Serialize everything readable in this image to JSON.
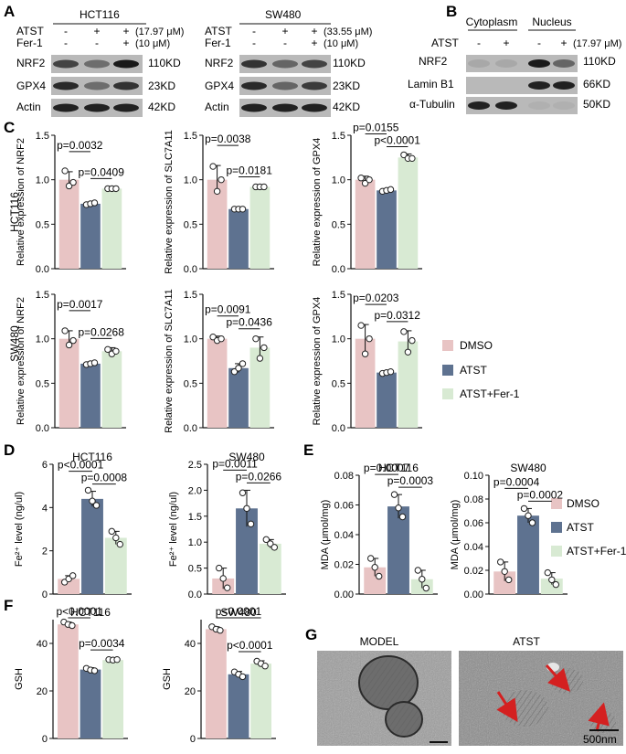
{
  "panels": [
    "A",
    "B",
    "C",
    "D",
    "E",
    "F",
    "G"
  ],
  "colors": {
    "dmso": "#e8c4c4",
    "atst": "#5e7290",
    "fer": "#d8ead3",
    "axis": "#111111",
    "arrow": "#d42020"
  },
  "legend": {
    "items": [
      "DMSO",
      "ATST",
      "ATST+Fer-1"
    ]
  },
  "blotA": [
    {
      "cell": "HCT116",
      "row1_label": "ATST",
      "row1_vals": [
        "-",
        "+",
        "+"
      ],
      "row1_conc": "(17.97 μM)",
      "row2_label": "Fer-1",
      "row2_vals": [
        "-",
        "-",
        "+"
      ],
      "row2_conc": "(10 μM)",
      "bands": [
        "NRF2",
        "GPX4",
        "Actin"
      ],
      "kd": [
        "110KD",
        "23KD",
        "42KD"
      ]
    },
    {
      "cell": "SW480",
      "row1_label": "ATST",
      "row1_vals": [
        "-",
        "+",
        "+"
      ],
      "row1_conc": "(33.55 μM)",
      "row2_label": "Fer-1",
      "row2_vals": [
        "-",
        "-",
        "+"
      ],
      "row2_conc": "(10 μM)",
      "bands": [
        "NRF2",
        "GPX4",
        "Actin"
      ],
      "kd": [
        "110KD",
        "23KD",
        "42KD"
      ]
    }
  ],
  "blotB": {
    "groups": [
      "Cytoplasm",
      "Nucleus"
    ],
    "row_label": "ATST",
    "vals": [
      "-",
      "+",
      "-",
      "+"
    ],
    "conc": "(17.97 μM)",
    "bands": [
      "NRF2",
      "Lamin B1",
      "α-Tubulin"
    ],
    "kd": [
      "110KD",
      "66KD",
      "50KD"
    ]
  },
  "rowLabels": [
    "HCT116",
    "SW480"
  ],
  "chart_data": [
    {
      "panel": "C",
      "type": "bar",
      "row": "HCT116",
      "ylabel": "Relative expression of NRF2",
      "ylim": [
        0,
        1.5
      ],
      "ticks": [
        "0.0",
        "0.5",
        "1.0",
        "1.5"
      ],
      "categories": [
        "DMSO",
        "ATST",
        "ATST+Fer-1"
      ],
      "values": [
        1.0,
        0.73,
        0.9
      ],
      "errors": [
        0.09,
        0.02,
        0.01
      ],
      "points": [
        [
          1.1,
          0.93,
          0.97
        ],
        [
          0.72,
          0.73,
          0.74
        ],
        [
          0.9,
          0.9,
          0.9
        ]
      ],
      "annotations": [
        {
          "from": 0,
          "to": 1,
          "text": "p=0.0032"
        },
        {
          "from": 1,
          "to": 2,
          "text": "p=0.0409"
        }
      ]
    },
    {
      "panel": "C",
      "type": "bar",
      "row": "HCT116",
      "ylabel": "Relative expression of SLC7A11",
      "ylim": [
        0,
        1.5
      ],
      "ticks": [
        "0.0",
        "0.5",
        "1.0",
        "1.5"
      ],
      "categories": [
        "DMSO",
        "ATST",
        "ATST+Fer-1"
      ],
      "values": [
        1.0,
        0.67,
        0.92
      ],
      "errors": [
        0.16,
        0.01,
        0.01
      ],
      "points": [
        [
          1.15,
          0.87,
          1.0
        ],
        [
          0.67,
          0.67,
          0.67
        ],
        [
          0.92,
          0.92,
          0.92
        ]
      ],
      "annotations": [
        {
          "from": 0,
          "to": 1,
          "text": "p=0.0038"
        },
        {
          "from": 1,
          "to": 2,
          "text": "p=0.0181"
        }
      ]
    },
    {
      "panel": "C",
      "type": "bar",
      "row": "HCT116",
      "ylabel": "Relative expression of GPX4",
      "ylim": [
        0,
        1.5
      ],
      "ticks": [
        "0.0",
        "0.5",
        "1.0",
        "1.5"
      ],
      "categories": [
        "DMSO",
        "ATST",
        "ATST+Fer-1"
      ],
      "values": [
        1.0,
        0.88,
        1.25
      ],
      "errors": [
        0.04,
        0.02,
        0.04
      ],
      "points": [
        [
          1.02,
          0.96,
          1.0
        ],
        [
          0.87,
          0.88,
          0.89
        ],
        [
          1.28,
          1.24,
          1.24
        ]
      ],
      "annotations": [
        {
          "from": 0,
          "to": 1,
          "text": "p=0.0155"
        },
        {
          "from": 1,
          "to": 2,
          "text": "p<0.0001"
        }
      ]
    },
    {
      "panel": "C",
      "type": "bar",
      "row": "SW480",
      "ylabel": "Relative expression of NRF2",
      "ylim": [
        0,
        1.5
      ],
      "ticks": [
        "0.0",
        "0.5",
        "1.0",
        "1.5"
      ],
      "categories": [
        "DMSO",
        "ATST",
        "ATST+Fer-1"
      ],
      "values": [
        1.0,
        0.72,
        0.86
      ],
      "errors": [
        0.09,
        0.02,
        0.04
      ],
      "points": [
        [
          1.09,
          0.93,
          0.98
        ],
        [
          0.71,
          0.72,
          0.73
        ],
        [
          0.88,
          0.83,
          0.86
        ]
      ],
      "annotations": [
        {
          "from": 0,
          "to": 1,
          "text": "p=0.0017"
        },
        {
          "from": 1,
          "to": 2,
          "text": "p=0.0268"
        }
      ]
    },
    {
      "panel": "C",
      "type": "bar",
      "row": "SW480",
      "ylabel": "Relative expression of SLC7A11",
      "ylim": [
        0,
        1.5
      ],
      "ticks": [
        "0.0",
        "0.5",
        "1.0",
        "1.5"
      ],
      "categories": [
        "DMSO",
        "ATST",
        "ATST+Fer-1"
      ],
      "values": [
        1.0,
        0.67,
        0.9
      ],
      "errors": [
        0.03,
        0.05,
        0.12
      ],
      "points": [
        [
          1.02,
          0.98,
          1.0
        ],
        [
          0.63,
          0.67,
          0.72
        ],
        [
          1.0,
          0.78,
          0.9
        ]
      ],
      "annotations": [
        {
          "from": 0,
          "to": 1,
          "text": "p=0.0091"
        },
        {
          "from": 1,
          "to": 2,
          "text": "p=0.0436"
        }
      ]
    },
    {
      "panel": "C",
      "type": "bar",
      "row": "SW480",
      "ylabel": "Relative expression of GPX4",
      "ylim": [
        0,
        1.5
      ],
      "ticks": [
        "0.0",
        "0.5",
        "1.0",
        "1.5"
      ],
      "categories": [
        "DMSO",
        "ATST",
        "ATST+Fer-1"
      ],
      "values": [
        1.0,
        0.62,
        0.97
      ],
      "errors": [
        0.16,
        0.02,
        0.12
      ],
      "points": [
        [
          1.15,
          0.83,
          1.0
        ],
        [
          0.61,
          0.62,
          0.63
        ],
        [
          1.08,
          0.85,
          0.98
        ]
      ],
      "annotations": [
        {
          "from": 0,
          "to": 1,
          "text": "p=0.0203"
        },
        {
          "from": 1,
          "to": 2,
          "text": "p=0.0312"
        }
      ]
    },
    {
      "panel": "D",
      "type": "bar",
      "title": "HCT116",
      "ylabel": "Fe²⁺ level (ng/ul)",
      "ylim": [
        0,
        6
      ],
      "ticks": [
        "0",
        "2",
        "4",
        "6"
      ],
      "categories": [
        "DMSO",
        "ATST",
        "ATST+Fer-1"
      ],
      "values": [
        0.7,
        4.4,
        2.6
      ],
      "errors": [
        0.15,
        0.35,
        0.3
      ],
      "points": [
        [
          0.55,
          0.7,
          0.85
        ],
        [
          4.8,
          4.3,
          4.1
        ],
        [
          2.9,
          2.6,
          2.3
        ]
      ],
      "annotations": [
        {
          "from": 0,
          "to": 1,
          "text": "p<0.0001"
        },
        {
          "from": 1,
          "to": 2,
          "text": "p=0.0008"
        }
      ]
    },
    {
      "panel": "D",
      "type": "bar",
      "title": "SW480",
      "ylabel": "Fe²⁺ level (ng/ul)",
      "ylim": [
        0,
        2.5
      ],
      "ticks": [
        "0.0",
        "0.5",
        "1.0",
        "1.5",
        "2.0",
        "2.5"
      ],
      "categories": [
        "DMSO",
        "ATST",
        "ATST+Fer-1"
      ],
      "values": [
        0.3,
        1.65,
        0.97
      ],
      "errors": [
        0.2,
        0.35,
        0.08
      ],
      "points": [
        [
          0.5,
          0.3,
          0.12
        ],
        [
          1.95,
          1.65,
          1.35
        ],
        [
          1.05,
          0.97,
          0.9
        ]
      ],
      "annotations": [
        {
          "from": 0,
          "to": 1,
          "text": "p=0.0011"
        },
        {
          "from": 1,
          "to": 2,
          "text": "p=0.0266"
        }
      ]
    },
    {
      "panel": "E",
      "type": "bar",
      "title": "HCT116",
      "ylabel": "MDA (μmol/mg)",
      "ylim": [
        0,
        0.08
      ],
      "ticks": [
        "0.00",
        "0.02",
        "0.04",
        "0.06",
        "0.08"
      ],
      "categories": [
        "DMSO",
        "ATST",
        "ATST+Fer-1"
      ],
      "values": [
        0.018,
        0.059,
        0.01
      ],
      "errors": [
        0.006,
        0.008,
        0.006
      ],
      "points": [
        [
          0.024,
          0.018,
          0.012
        ],
        [
          0.067,
          0.058,
          0.052
        ],
        [
          0.016,
          0.01,
          0.004
        ]
      ],
      "annotations": [
        {
          "from": 0,
          "to": 1,
          "text": "p=0.0007"
        },
        {
          "from": 1,
          "to": 2,
          "text": "p=0.0003"
        }
      ]
    },
    {
      "panel": "E",
      "type": "bar",
      "title": "SW480",
      "ylabel": "MDA (μmol/mg)",
      "ylim": [
        0,
        0.1
      ],
      "ticks": [
        "0.00",
        "0.02",
        "0.04",
        "0.06",
        "0.08",
        "0.10"
      ],
      "categories": [
        "DMSO",
        "ATST",
        "ATST+Fer-1"
      ],
      "values": [
        0.019,
        0.066,
        0.013
      ],
      "errors": [
        0.008,
        0.006,
        0.005
      ],
      "points": [
        [
          0.027,
          0.019,
          0.012
        ],
        [
          0.072,
          0.066,
          0.06
        ],
        [
          0.018,
          0.012,
          0.008
        ]
      ],
      "annotations": [
        {
          "from": 0,
          "to": 1,
          "text": "p=0.0004"
        },
        {
          "from": 1,
          "to": 2,
          "text": "p=0.0002"
        }
      ]
    },
    {
      "panel": "F",
      "type": "bar",
      "title": "HCT116",
      "ylabel": "GSH",
      "ylim": [
        0,
        50
      ],
      "ticks": [
        "0",
        "20",
        "40"
      ],
      "categories": [
        "DMSO",
        "ATST",
        "ATST+Fer-1"
      ],
      "values": [
        48,
        29,
        33
      ],
      "errors": [
        1,
        0.8,
        0.4
      ],
      "points": [
        [
          49,
          48,
          47.5
        ],
        [
          29.5,
          28.8,
          28.5
        ],
        [
          33.2,
          33,
          33.2
        ]
      ],
      "annotations": [
        {
          "from": 0,
          "to": 1,
          "text": "p<0.0001"
        },
        {
          "from": 1,
          "to": 2,
          "text": "p=0.0034"
        }
      ]
    },
    {
      "panel": "F",
      "type": "bar",
      "title": "SW480",
      "ylabel": "GSH",
      "ylim": [
        0,
        50
      ],
      "ticks": [
        "0",
        "20",
        "40"
      ],
      "categories": [
        "DMSO",
        "ATST",
        "ATST+Fer-1"
      ],
      "values": [
        46,
        27,
        31.5
      ],
      "errors": [
        1,
        1.2,
        1.2
      ],
      "points": [
        [
          47,
          46,
          45.5
        ],
        [
          28,
          27,
          26
        ],
        [
          32.5,
          31.5,
          30.5
        ]
      ],
      "annotations": [
        {
          "from": 0,
          "to": 2,
          "text": "p<0.0001"
        },
        {
          "from": 1,
          "to": 2,
          "text": "p<0.0001"
        }
      ]
    }
  ],
  "em": {
    "left_title": "MODEL",
    "right_title": "ATST",
    "scale": "500nm"
  }
}
